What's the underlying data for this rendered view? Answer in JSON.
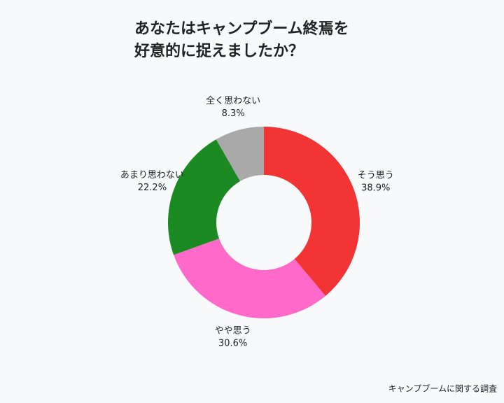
{
  "chart_data": {
    "type": "donut",
    "title": [
      "あなたはキャンプブーム終焉を",
      "好意的に捉えましたか？"
    ],
    "categories": [
      "そう思う",
      "やや思う",
      "あまり思わない",
      "全く思わない"
    ],
    "values": [
      38.9,
      30.6,
      22.2,
      8.3
    ],
    "value_labels": [
      "38.9%",
      "30.6%",
      "22.2%",
      "8.3%"
    ],
    "colors": [
      "#f23434",
      "#ff69c9",
      "#1b8a23",
      "#a9a9a9"
    ],
    "source": "キャンプブームに関する調査"
  }
}
